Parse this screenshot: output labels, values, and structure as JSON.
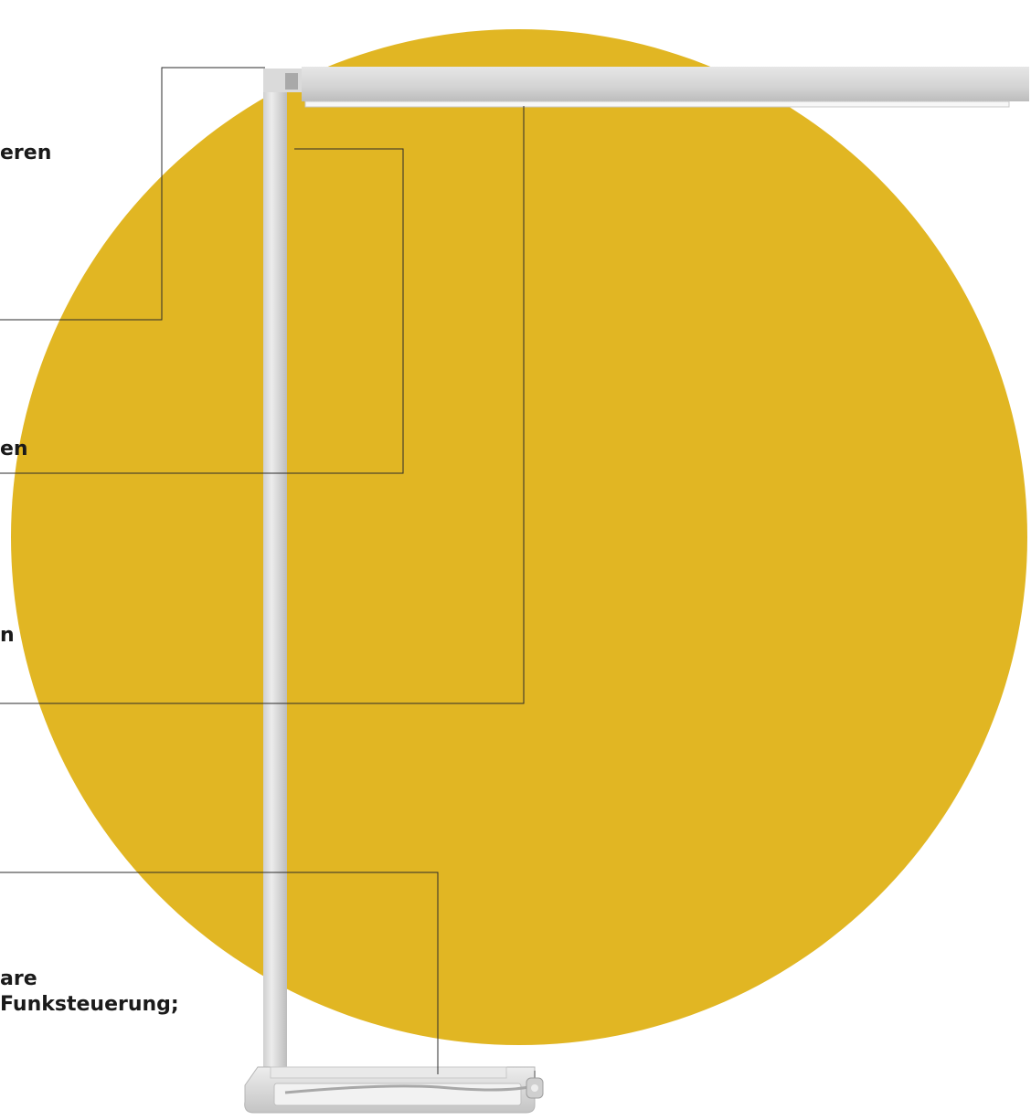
{
  "colors": {
    "circle": "#e1b623",
    "leader_line": "#2b2b2b",
    "lamp_metal": "#d8d8d8",
    "lamp_metal_dark": "#b9b9b9",
    "label_text": "#1a1a1a"
  },
  "icons": [
    "floor-lamp-icon",
    "power-plug-icon"
  ],
  "labels": {
    "label_1": "eren",
    "label_2": "en",
    "label_3": "n",
    "label_4": "are\nFunksteuerung;"
  }
}
